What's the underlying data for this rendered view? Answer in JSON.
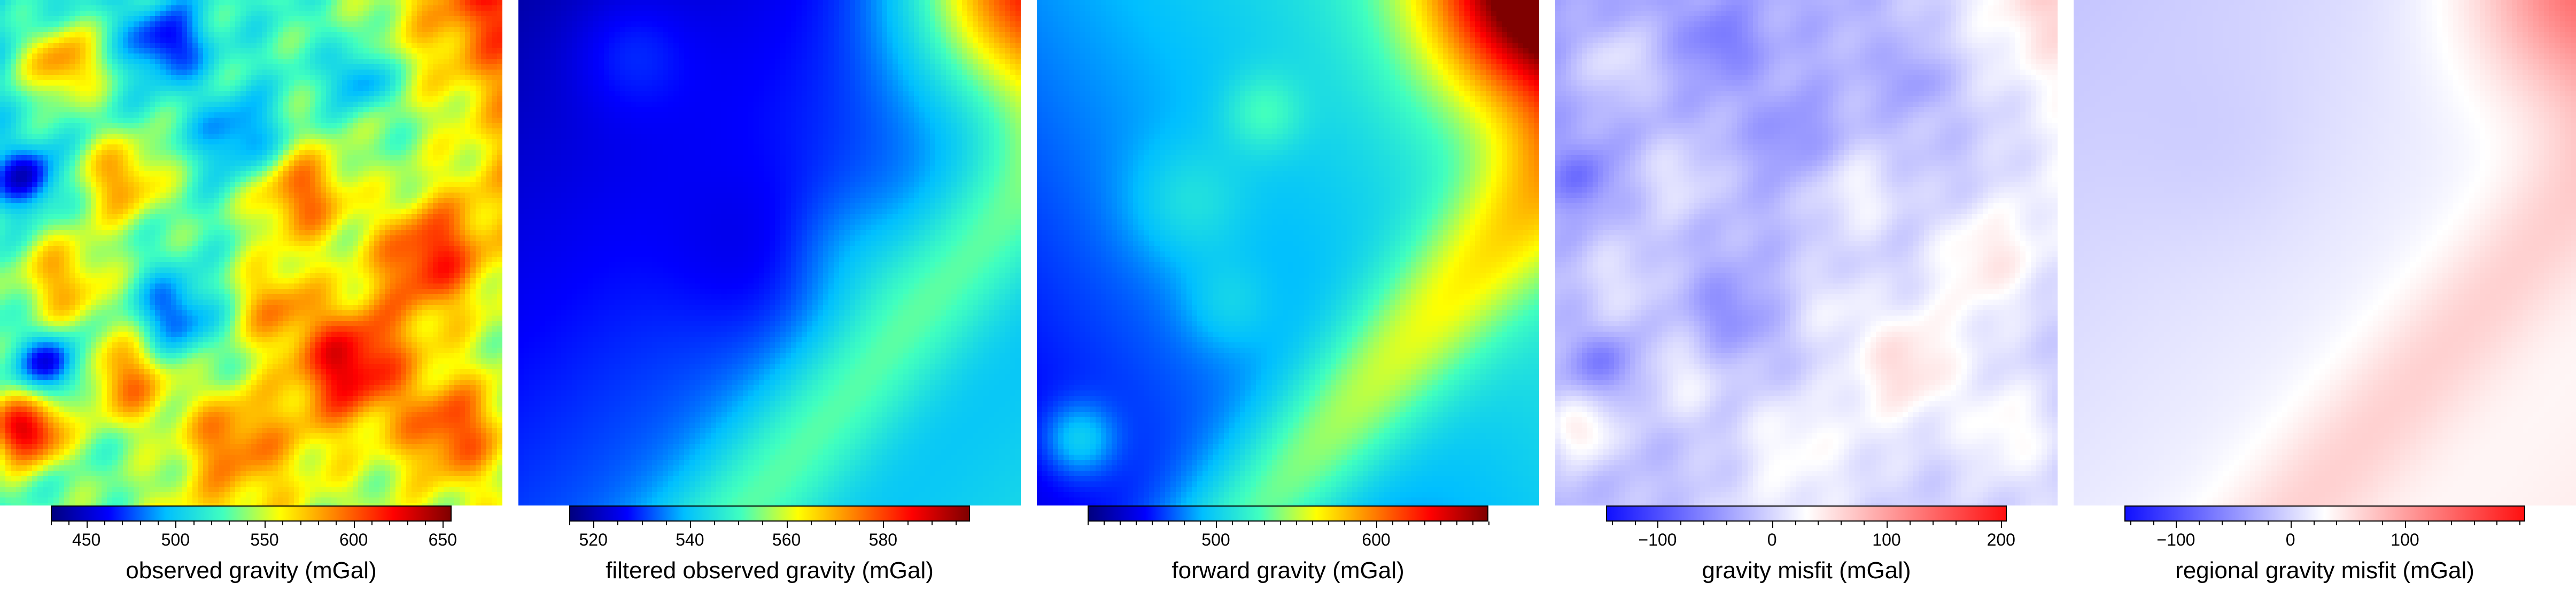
{
  "panels": [
    {
      "title": "observed gravity (mGal)",
      "colormap": "jet",
      "range": [
        430,
        655
      ],
      "ticks": [
        450,
        500,
        550,
        600,
        650
      ],
      "tick_labels": [
        "450",
        "500",
        "550",
        "600",
        "650"
      ]
    },
    {
      "title": "filtered observed gravity (mGal)",
      "colormap": "jet",
      "range": [
        515,
        598
      ],
      "ticks": [
        520,
        540,
        560,
        580
      ],
      "tick_labels": [
        "520",
        "540",
        "560",
        "580"
      ]
    },
    {
      "title": "forward gravity (mGal)",
      "colormap": "jet",
      "range": [
        420,
        670
      ],
      "ticks": [
        500,
        600
      ],
      "tick_labels": [
        "500",
        "600"
      ]
    },
    {
      "title": "gravity misfit (mGal)",
      "colormap": "polar",
      "range": [
        -145,
        205
      ],
      "ticks": [
        -100,
        0,
        100,
        200
      ],
      "tick_labels": [
        "−100",
        "0",
        "100",
        "200"
      ]
    },
    {
      "title": "regional gravity misfit (mGal)",
      "colormap": "polar",
      "range": [
        -145,
        205
      ],
      "ticks": [
        -100,
        0,
        100
      ],
      "tick_labels": [
        "−100",
        "0",
        "100"
      ]
    }
  ],
  "colors": {
    "jet": [
      "#00007f",
      "#0000ff",
      "#00bfff",
      "#40ffbf",
      "#ffff00",
      "#ff7f00",
      "#ff0000",
      "#7f0000"
    ],
    "polar": [
      "#1010ff",
      "#ffffff",
      "#ff1010"
    ]
  }
}
